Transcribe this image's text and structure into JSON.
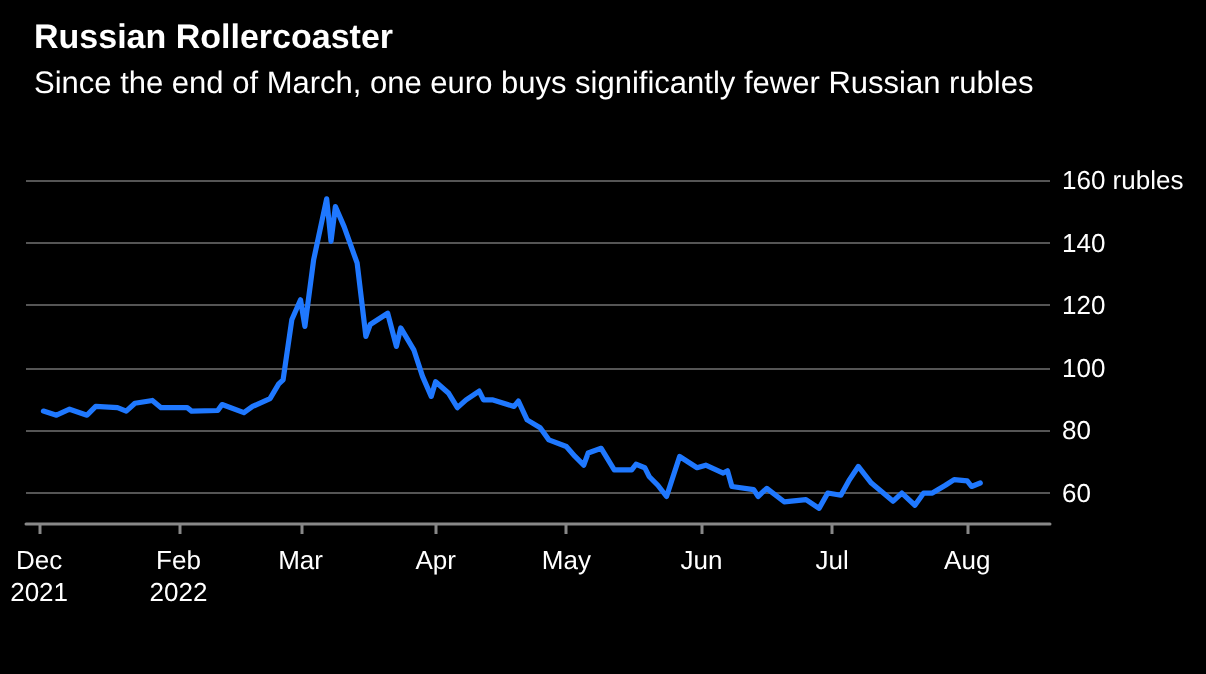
{
  "chart_data": {
    "type": "line",
    "title": "Russian Rollercoaster",
    "subtitle": "Since the end of March, one euro buys significantly fewer Russian rubles",
    "x": [
      "2022-01-01",
      "2022-01-04",
      "2022-01-07",
      "2022-01-11",
      "2022-01-13",
      "2022-01-18",
      "2022-01-20",
      "2022-01-22",
      "2022-01-26",
      "2022-01-28",
      "2022-02-03",
      "2022-02-04",
      "2022-02-10",
      "2022-02-11",
      "2022-02-16",
      "2022-02-18",
      "2022-02-22",
      "2022-02-24",
      "2022-02-25",
      "2022-02-27",
      "2022-03-01",
      "2022-03-02",
      "2022-03-04",
      "2022-03-07",
      "2022-03-08",
      "2022-03-09",
      "2022-03-11",
      "2022-03-14",
      "2022-03-16",
      "2022-03-17",
      "2022-03-21",
      "2022-03-23",
      "2022-03-24",
      "2022-03-27",
      "2022-03-29",
      "2022-03-31",
      "2022-04-01",
      "2022-04-04",
      "2022-04-06",
      "2022-04-08",
      "2022-04-11",
      "2022-04-12",
      "2022-04-14",
      "2022-04-19",
      "2022-04-20",
      "2022-04-22",
      "2022-04-25",
      "2022-04-27",
      "2022-05-01",
      "2022-05-03",
      "2022-05-05",
      "2022-05-06",
      "2022-05-09",
      "2022-05-12",
      "2022-05-16",
      "2022-05-17",
      "2022-05-19",
      "2022-05-20",
      "2022-05-22",
      "2022-05-24",
      "2022-05-27",
      "2022-05-31",
      "2022-06-02",
      "2022-06-06",
      "2022-06-07",
      "2022-06-08",
      "2022-06-13",
      "2022-06-14",
      "2022-06-16",
      "2022-06-20",
      "2022-06-25",
      "2022-06-28",
      "2022-06-30",
      "2022-07-03",
      "2022-07-05",
      "2022-07-07",
      "2022-07-10",
      "2022-07-15",
      "2022-07-17",
      "2022-07-20",
      "2022-07-22",
      "2022-07-24",
      "2022-07-27",
      "2022-07-29",
      "2022-08-01",
      "2022-08-02",
      "2022-08-04"
    ],
    "series": [
      {
        "color": "#1f78ff",
        "values": [
          86.1,
          84.8,
          86.7,
          84.8,
          87.6,
          87.2,
          86.1,
          88.6,
          89.5,
          87.2,
          87.2,
          86.1,
          86.3,
          88.2,
          85.6,
          87.6,
          90.1,
          94.8,
          96.1,
          115.3,
          121.7,
          113.2,
          134.4,
          154,
          140.4,
          151.5,
          145.1,
          133.4,
          110,
          113.8,
          117.4,
          106.8,
          112.7,
          105.7,
          97.2,
          90.8,
          95.5,
          91.8,
          87.2,
          89.7,
          92.5,
          89.7,
          89.7,
          87.6,
          89.3,
          83.3,
          80.8,
          76.9,
          74.8,
          71.6,
          68.8,
          72.7,
          74.2,
          67.3,
          67.3,
          69.1,
          68,
          65.2,
          62.4,
          58.8,
          71.6,
          68,
          68.8,
          66.3,
          67,
          62,
          61,
          58.8,
          61.4,
          57.1,
          57.8,
          55,
          59.9,
          59.2,
          64.2,
          68.4,
          63.1,
          57.3,
          59.9,
          56,
          59.9,
          59.9,
          62.4,
          64.2,
          63.8,
          62,
          63.1
        ]
      }
    ],
    "xlim": [
      "2021-12-28",
      "2022-08-20"
    ],
    "xticks": [
      {
        "value": "2021-12-31",
        "label": "Dec\n2021"
      },
      {
        "value": "2022-02-01",
        "label": "Feb\n2022"
      },
      {
        "value": "2022-03-01",
        "label": "Mar"
      },
      {
        "value": "2022-04-01",
        "label": "Apr"
      },
      {
        "value": "2022-05-01",
        "label": "May"
      },
      {
        "value": "2022-06-01",
        "label": "Jun"
      },
      {
        "value": "2022-07-01",
        "label": "Jul"
      },
      {
        "value": "2022-08-01",
        "label": "Aug"
      }
    ],
    "ylim": [
      50,
      160
    ],
    "yticks": [
      60,
      80,
      100,
      120,
      140,
      {
        "value": 160,
        "label": "160 rubles"
      }
    ],
    "grid": "y",
    "marker": "none",
    "line_style": "solid"
  }
}
